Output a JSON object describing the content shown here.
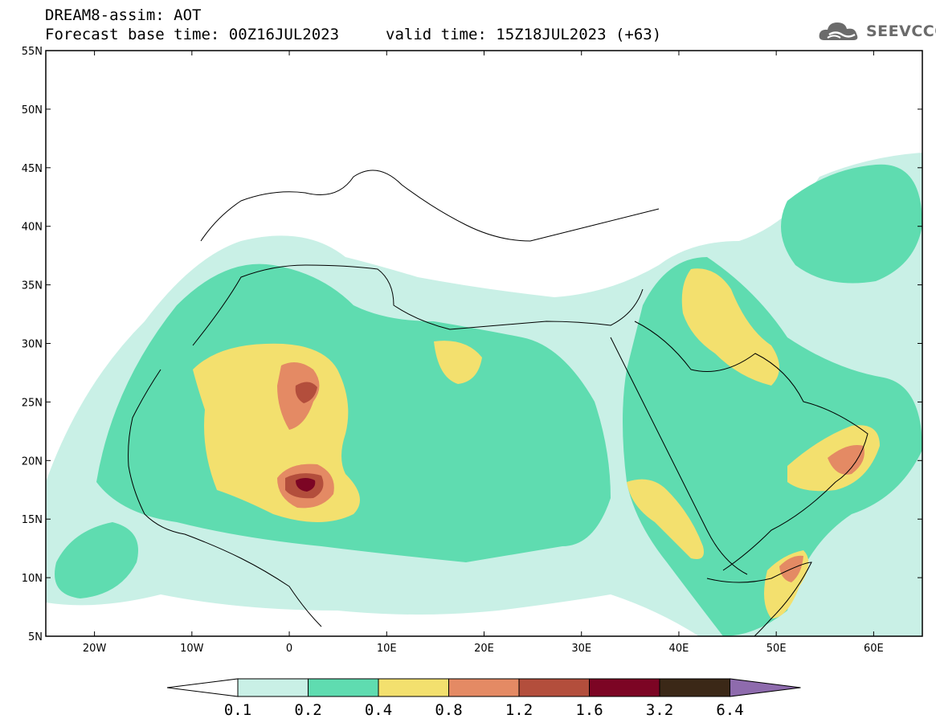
{
  "header": {
    "line1": "DREAM8-assim: AOT",
    "line2": "Forecast base time: 00Z16JUL2023",
    "valid": "valid time: 15Z18JUL2023 (+63)"
  },
  "logo": {
    "text": "SEEVCCC",
    "icon": "cloud-icon"
  },
  "map": {
    "lon_range": [
      -25,
      65
    ],
    "lat_range": [
      5,
      55
    ],
    "lat_ticks": [
      "55N",
      "50N",
      "45N",
      "40N",
      "35N",
      "30N",
      "25N",
      "20N",
      "15N",
      "10N",
      "5N"
    ],
    "lon_ticks": [
      "20W",
      "10W",
      "0",
      "10E",
      "20E",
      "30E",
      "40E",
      "50E",
      "60E"
    ]
  },
  "colorbar": {
    "labels": [
      "0.1",
      "0.2",
      "0.4",
      "0.8",
      "1.2",
      "1.6",
      "3.2",
      "6.4"
    ],
    "colors": [
      "#c9f0e6",
      "#5fdcb0",
      "#f3e06e",
      "#e48a64",
      "#b34e3c",
      "#7c0524",
      "#3b2817",
      "#8e6bad"
    ]
  }
}
